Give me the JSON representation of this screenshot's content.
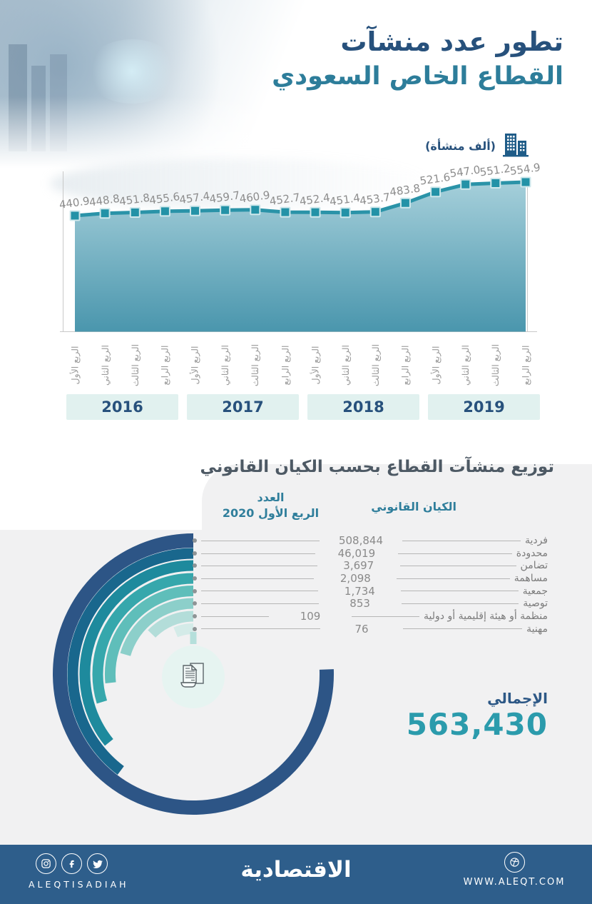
{
  "header": {
    "title_line1": "تطور عدد منشآت",
    "title_line2": "القطاع الخاص السعودي",
    "unit_label": "(ألف منشأة)",
    "title1_color": "#27517c",
    "title2_color": "#2d7d9a"
  },
  "chart_data": [
    {
      "type": "area",
      "title": "تطور عدد منشآت القطاع الخاص السعودي",
      "unit": "(ألف منشأة)",
      "years": [
        "2016",
        "2017",
        "2018",
        "2019"
      ],
      "quarters": [
        "الربع الأول",
        "الربع الثاني",
        "الربع الثالث",
        "الربع الرابع"
      ],
      "values": [
        440.9,
        448.8,
        451.8,
        455.6,
        457.4,
        459.7,
        460.9,
        452.7,
        452.4,
        451.4,
        453.7,
        483.8,
        521.6,
        547.0,
        551.2,
        554.9
      ],
      "line_color": "#2a93a8",
      "marker_color": "#2392a7",
      "marker_stroke": "#cfe8ec",
      "area_gradient_top": "#a5cfda",
      "area_gradient_bottom": "#4a96ad",
      "value_label_color": "#8c8c8c",
      "axis_color": "#c8c8c8",
      "year_band_bg": "#e1f1ef",
      "year_band_text_color": "#27517c",
      "legend_position": "none",
      "grid": false
    },
    {
      "type": "radial-bar",
      "title": "توزيع منشآت القطاع بحسب الكيان القانوني",
      "rows": [
        {
          "label": "فردية",
          "value": "508,844",
          "color": "#2d5586",
          "sweep_deg": 272
        },
        {
          "label": "محدودة",
          "value": "46,019",
          "color": "#19678d",
          "sweep_deg": 143
        },
        {
          "label": "تضامن",
          "value": "3,697",
          "color": "#1e8a9d",
          "sweep_deg": 129
        },
        {
          "label": "مساهمة",
          "value": "2,098",
          "color": "#36a7ac",
          "sweep_deg": 107
        },
        {
          "label": "جمعية",
          "value": "1,734",
          "color": "#5fbeba",
          "sweep_deg": 96
        },
        {
          "label": "توصية",
          "value": "853",
          "color": "#8ccfca",
          "sweep_deg": 74
        },
        {
          "label": "منظمة أو هيئة إقليمية أو دولية",
          "value": "109",
          "color": "#b3ddd9",
          "sweep_deg": 46
        },
        {
          "label": "مهنية",
          "value": "76",
          "color": "#d4ebe8",
          "sweep_deg": 23
        }
      ],
      "center_icon": "documents-icon",
      "center_circle_color": "#e6f4f1"
    }
  ],
  "legal_section": {
    "title": "توزيع منشآت القطاع بحسب الكيان القانوني",
    "title_color": "#4d5964",
    "count_header_line1": "العدد",
    "count_header_line2": "الربع الأول 2020",
    "entity_header": "الكيان القانوني",
    "header_color": "#2f7e9b",
    "total_label": "الإجمالي",
    "total_value": "563,430",
    "total_label_color": "#2d5886",
    "total_value_color": "#2b9bac",
    "card_bg": "#f1f1f2"
  },
  "footer": {
    "bg": "#2e5e8b",
    "social_handle": "ALEQTISADIAH",
    "logo_text": "الاقتصادية",
    "website_url": "WWW.ALEQT.COM",
    "icons": [
      "instagram-icon",
      "facebook-icon",
      "twitter-icon",
      "dribbble-icon"
    ]
  }
}
